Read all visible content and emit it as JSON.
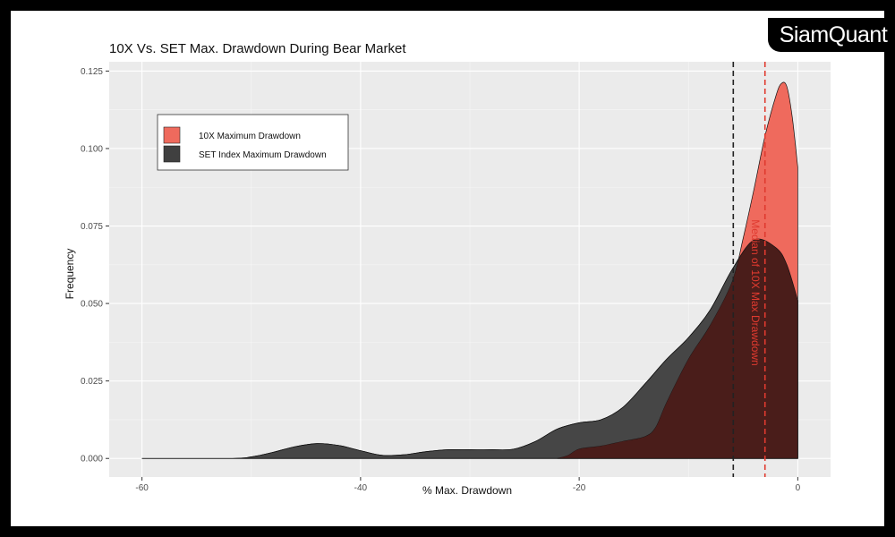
{
  "brand": {
    "logo_text": "SiamQuant"
  },
  "chart_data": {
    "type": "area",
    "title": "10X Vs. SET Max. Drawdown During Bear Market",
    "xlabel": "% Max. Drawdown",
    "ylabel": "Frequency",
    "xlim": [
      -63,
      3
    ],
    "ylim": [
      -0.006,
      0.128
    ],
    "x_ticks": [
      -60,
      -40,
      -20,
      0
    ],
    "y_ticks": [
      0.0,
      0.025,
      0.05,
      0.075,
      0.1,
      0.125
    ],
    "x_tick_labels": [
      "-60",
      "-40",
      "-20",
      "0"
    ],
    "y_tick_labels": [
      "0.000",
      "0.025",
      "0.050",
      "0.075",
      "0.100",
      "0.125"
    ],
    "grid": true,
    "legend_position": "top-left",
    "series": [
      {
        "name": "SET Index Maximum Drawdown",
        "color": "#404040",
        "x": [
          -60,
          -52,
          -50,
          -48,
          -46,
          -44,
          -42,
          -40,
          -38,
          -36,
          -34,
          -32,
          -30,
          -28,
          -26,
          -24,
          -22,
          -20,
          -18,
          -16,
          -14,
          -12,
          -10,
          -8,
          -6,
          -4,
          -2,
          -1,
          0
        ],
        "y": [
          0,
          0,
          0.0005,
          0.002,
          0.0038,
          0.0048,
          0.0042,
          0.0025,
          0.001,
          0.0012,
          0.0022,
          0.0028,
          0.0028,
          0.0028,
          0.003,
          0.0055,
          0.0095,
          0.0115,
          0.0125,
          0.0165,
          0.024,
          0.032,
          0.039,
          0.048,
          0.061,
          0.0705,
          0.068,
          0.0625,
          0.051
        ]
      },
      {
        "name": "10X Maximum Drawdown",
        "color": "#ef6a5d",
        "x": [
          -22,
          -21,
          -20,
          -18,
          -16,
          -14,
          -13,
          -12,
          -10,
          -8,
          -6,
          -5,
          -4,
          -3,
          -2,
          -1.5,
          -1,
          -0.5,
          0
        ],
        "y": [
          0,
          0.001,
          0.003,
          0.004,
          0.0055,
          0.007,
          0.01,
          0.018,
          0.032,
          0.043,
          0.057,
          0.071,
          0.087,
          0.104,
          0.117,
          0.121,
          0.12,
          0.11,
          0.094
        ]
      }
    ],
    "reference_lines": [
      {
        "color": "#222222",
        "x": -5.9
      },
      {
        "color": "#e03a2f",
        "x": -3.0
      }
    ],
    "annotation": {
      "text": "Median of 10X Max Drawdown",
      "x": -4.2,
      "y": 0.0535,
      "color": "#e03a2f"
    },
    "overlap_color": "#4a1d1a"
  }
}
